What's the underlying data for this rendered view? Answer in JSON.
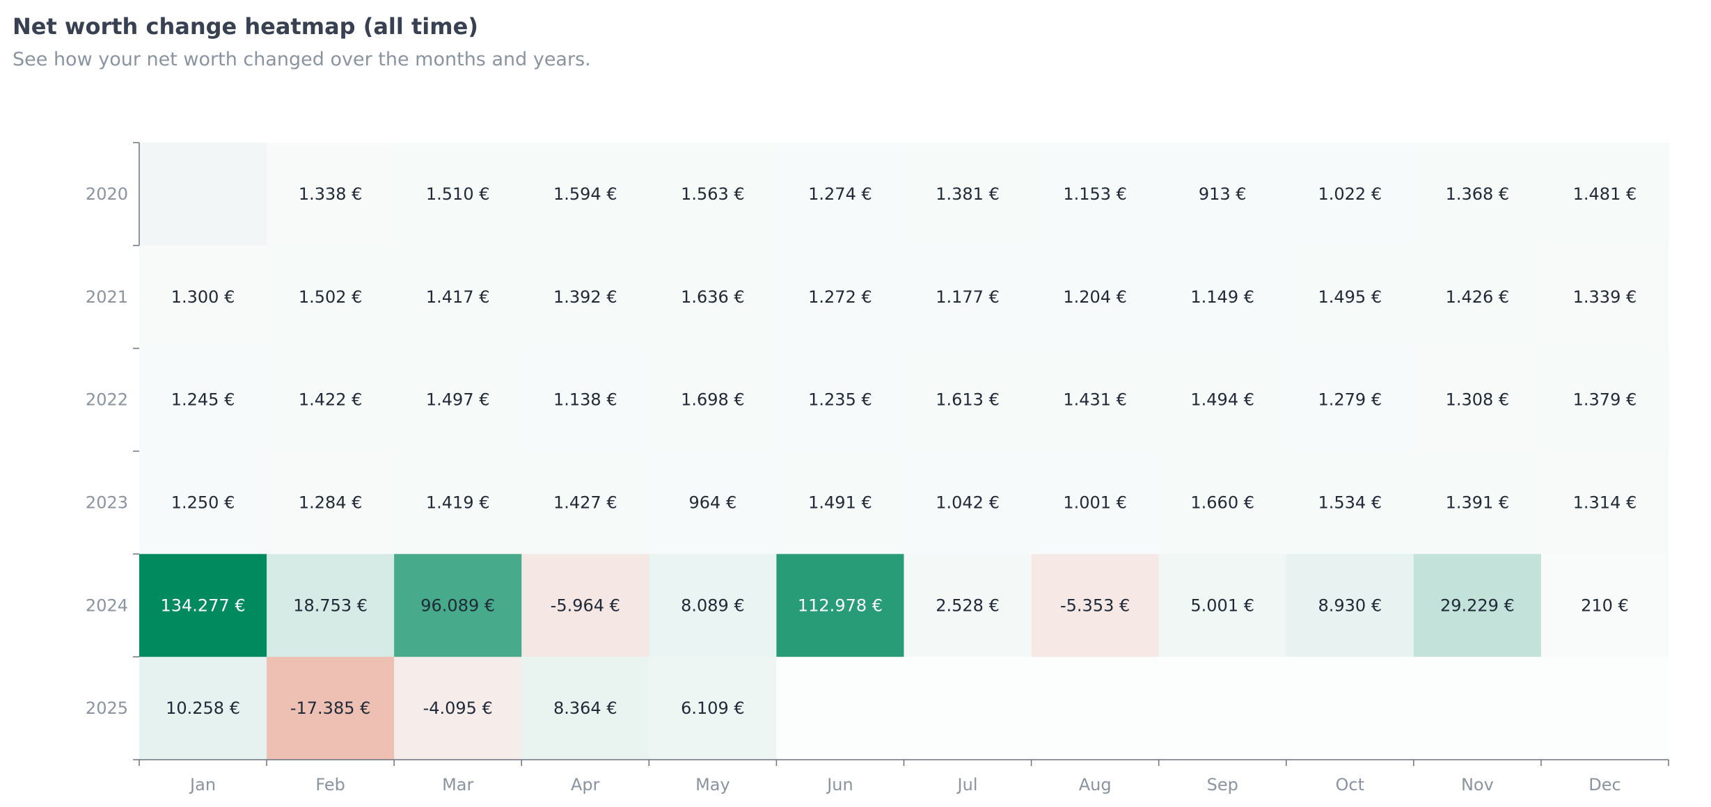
{
  "header": {
    "title": "Net worth change heatmap (all time)",
    "subtitle": "See how your net worth changed over the months and years."
  },
  "chart_data": {
    "type": "heatmap",
    "title": "Net worth change heatmap (all time)",
    "subtitle": "See how your net worth changed over the months and years.",
    "x_categories": [
      "Jan",
      "Feb",
      "Mar",
      "Apr",
      "May",
      "Jun",
      "Jul",
      "Aug",
      "Sep",
      "Oct",
      "Nov",
      "Dec"
    ],
    "y_categories": [
      "2020",
      "2021",
      "2022",
      "2023",
      "2024",
      "2025"
    ],
    "currency_suffix": " €",
    "values": [
      [
        null,
        1338,
        1510,
        1594,
        1563,
        1274,
        1381,
        1153,
        913,
        1022,
        1368,
        1481
      ],
      [
        1300,
        1502,
        1417,
        1392,
        1636,
        1272,
        1177,
        1204,
        1149,
        1495,
        1426,
        1339
      ],
      [
        1245,
        1422,
        1497,
        1138,
        1698,
        1235,
        1613,
        1431,
        1494,
        1279,
        1308,
        1379
      ],
      [
        1250,
        1284,
        1419,
        1427,
        964,
        1491,
        1042,
        1001,
        1660,
        1534,
        1391,
        1314
      ],
      [
        134277,
        18753,
        96089,
        -5964,
        8089,
        112978,
        2528,
        -5353,
        5001,
        8930,
        29229,
        210
      ],
      [
        10258,
        -17385,
        -4095,
        8364,
        6109,
        null,
        null,
        null,
        null,
        null,
        null,
        null
      ]
    ],
    "labels": [
      [
        "",
        "1.338 €",
        "1.510 €",
        "1.594 €",
        "1.563 €",
        "1.274 €",
        "1.381 €",
        "1.153 €",
        "913 €",
        "1.022 €",
        "1.368 €",
        "1.481 €"
      ],
      [
        "1.300 €",
        "1.502 €",
        "1.417 €",
        "1.392 €",
        "1.636 €",
        "1.272 €",
        "1.177 €",
        "1.204 €",
        "1.149 €",
        "1.495 €",
        "1.426 €",
        "1.339 €"
      ],
      [
        "1.245 €",
        "1.422 €",
        "1.497 €",
        "1.138 €",
        "1.698 €",
        "1.235 €",
        "1.613 €",
        "1.431 €",
        "1.494 €",
        "1.279 €",
        "1.308 €",
        "1.379 €"
      ],
      [
        "1.250 €",
        "1.284 €",
        "1.419 €",
        "1.427 €",
        "964 €",
        "1.491 €",
        "1.042 €",
        "1.001 €",
        "1.660 €",
        "1.534 €",
        "1.391 €",
        "1.314 €"
      ],
      [
        "134.277 €",
        "18.753 €",
        "96.089 €",
        "-5.964 €",
        "8.089 €",
        "112.978 €",
        "2.528 €",
        "-5.353 €",
        "5.001 €",
        "8.930 €",
        "29.229 €",
        "210 €"
      ],
      [
        "10.258 €",
        "-17.385 €",
        "-4.095 €",
        "8.364 €",
        "6.109 €",
        "",
        "",
        "",
        "",
        "",
        "",
        ""
      ]
    ],
    "colors": {
      "positive": "#008a5e",
      "negative": "#e07a5f",
      "neutral": "#f9fbfb",
      "text_dark": "#1f2937",
      "text_light": "#ffffff",
      "axis": "#6b7280",
      "tick_text": "#8a94a1"
    }
  }
}
